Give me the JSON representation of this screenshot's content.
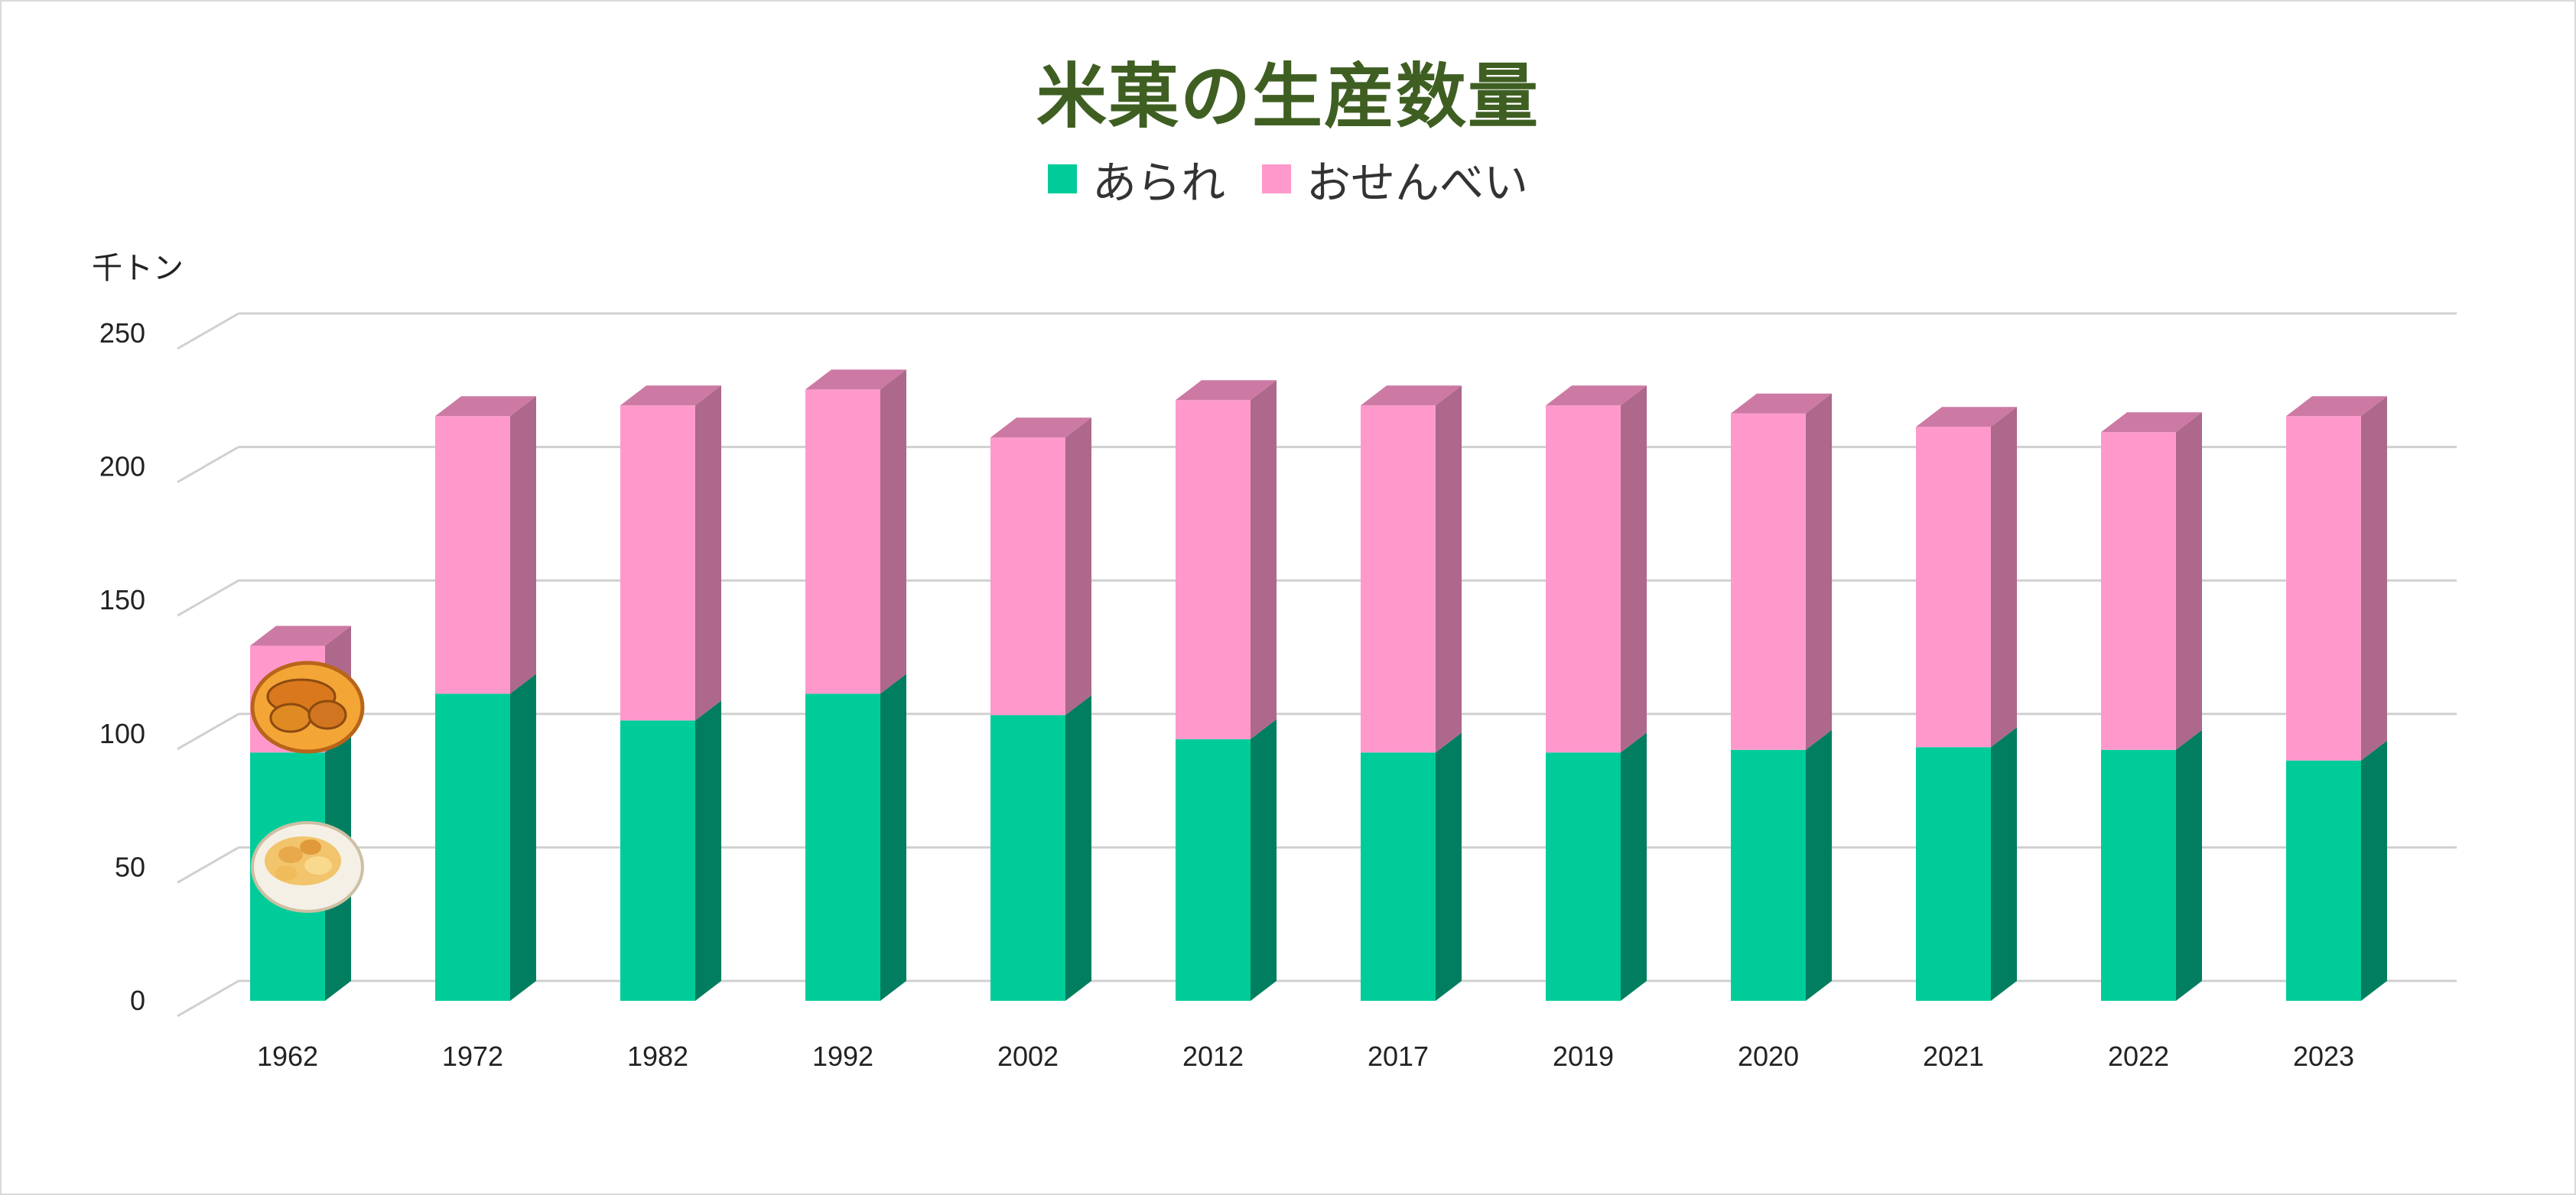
{
  "chart_data": {
    "type": "bar",
    "stacked": true,
    "style": "3d-column",
    "title": "米菓の生産数量",
    "ylabel": "千トン",
    "ylim": [
      0,
      250
    ],
    "yticks": [
      0,
      50,
      100,
      150,
      200,
      250
    ],
    "grid": true,
    "legend_position": "top",
    "categories": [
      "1962",
      "1972",
      "1982",
      "1992",
      "2002",
      "2012",
      "2017",
      "2019",
      "2020",
      "2021",
      "2022",
      "2023"
    ],
    "series": [
      {
        "name": "あられ",
        "color": "#00cc99",
        "values": [
          93,
          115,
          105,
          115,
          107,
          98,
          93,
          93,
          94,
          95,
          94,
          90
        ]
      },
      {
        "name": "おせんべい",
        "color": "#ff99cc",
        "values": [
          40,
          104,
          118,
          114,
          104,
          127,
          130,
          130,
          126,
          120,
          119,
          129
        ]
      }
    ],
    "decorations": [
      "rice-cracker-bowl-icon",
      "arare-bowl-icon"
    ]
  }
}
